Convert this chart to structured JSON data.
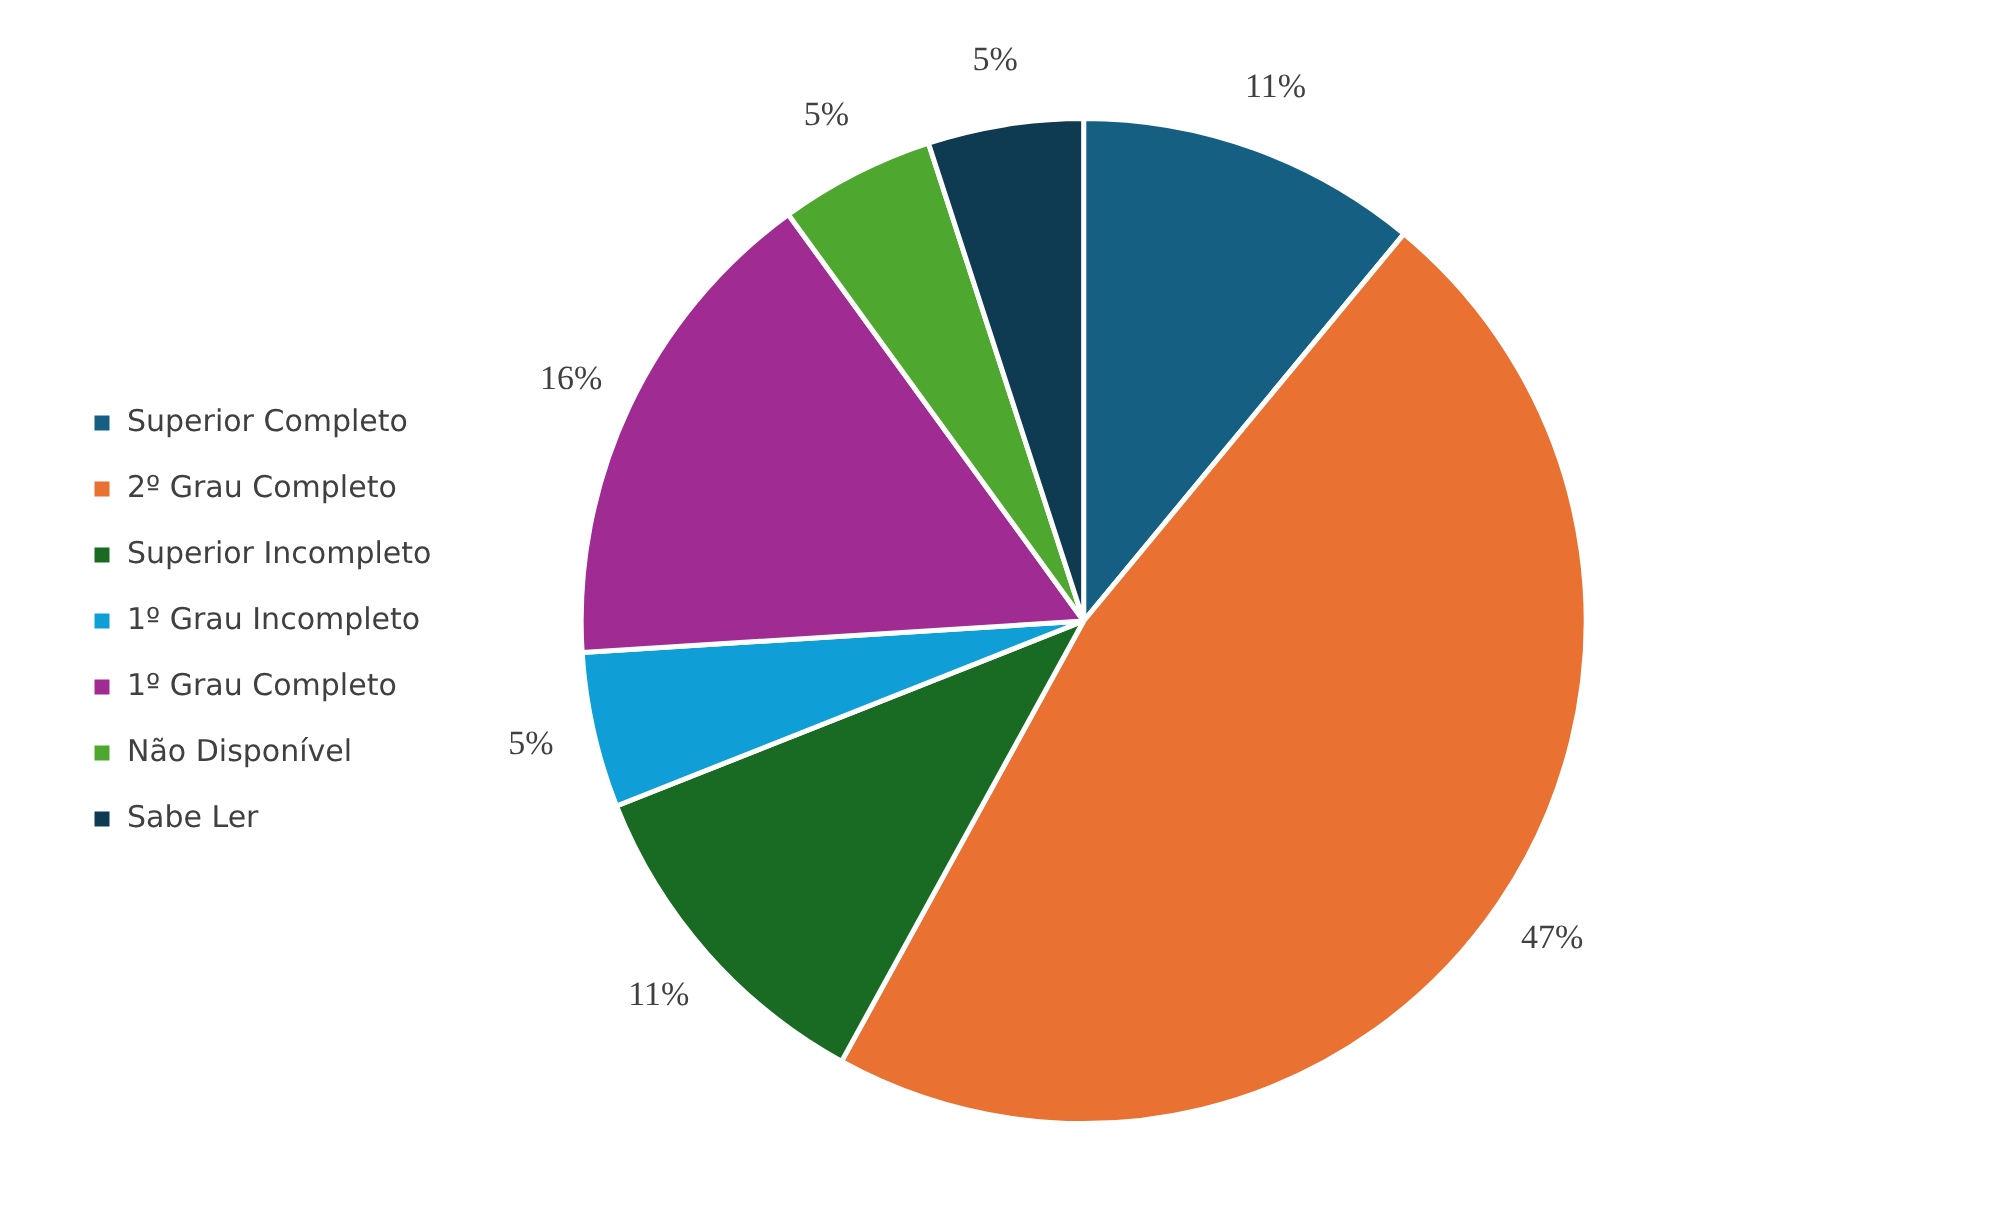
{
  "chart_data": {
    "type": "pie",
    "legend": "left",
    "categories": [
      "Superior Completo",
      "2º Grau Completo",
      "Superior Incompleto",
      "1º Grau Incompleto",
      "1º Grau Completo",
      "Não Disponível",
      "Sabe Ler"
    ],
    "values": [
      11,
      47,
      11,
      5,
      16,
      5,
      5
    ],
    "value_labels": [
      "11%",
      "47%",
      "11%",
      "5%",
      "16%",
      "5%",
      "5%"
    ],
    "colors": [
      "#156082",
      "#e97132",
      "#196b24",
      "#0f9ed5",
      "#a02b93",
      "#4ea72e",
      "#0e3a52"
    ]
  }
}
